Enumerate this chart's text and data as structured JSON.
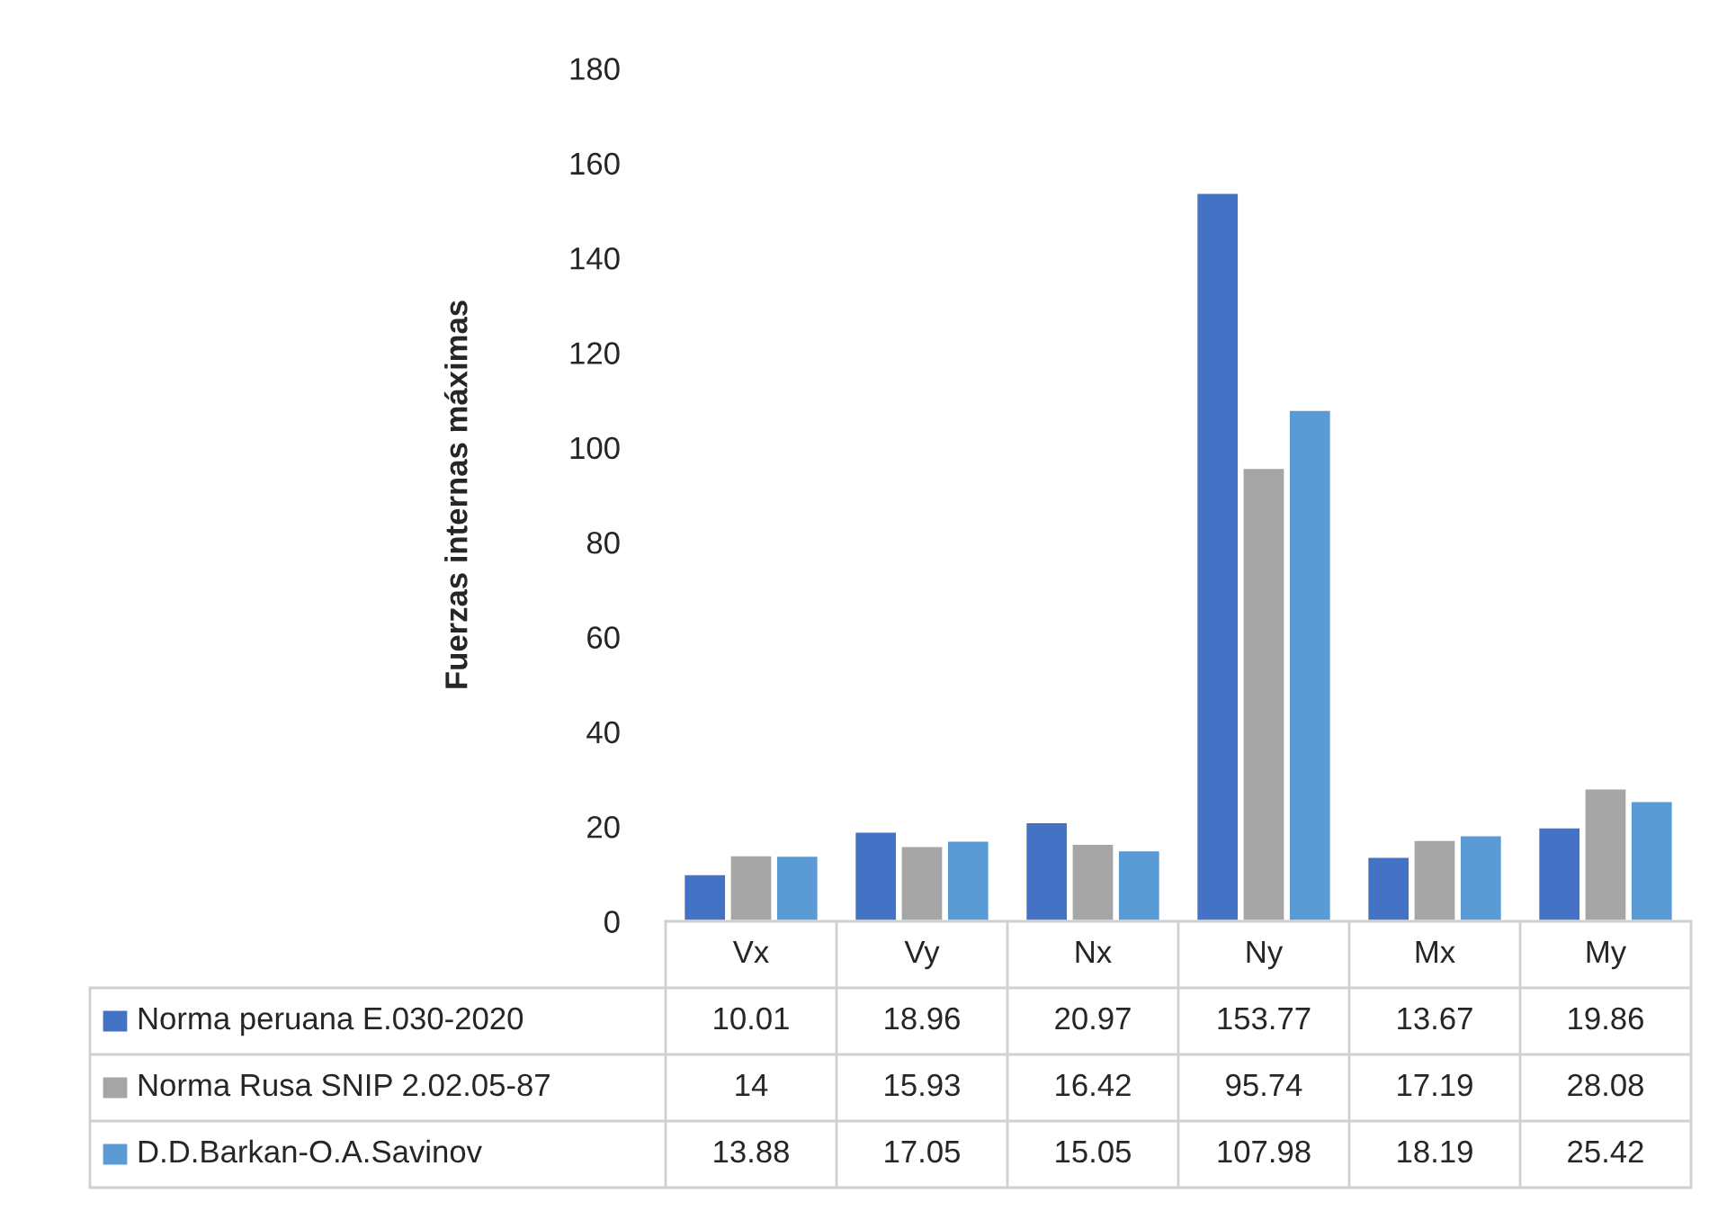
{
  "chart_data": {
    "type": "bar",
    "ylabel": "Fuerzas internas máximas",
    "categories": [
      "Vx",
      "Vy",
      "Nx",
      "Ny",
      "Mx",
      "My"
    ],
    "series": [
      {
        "name": "Norma peruana E.030-2020",
        "color": "#4472c4",
        "values": [
          10.01,
          18.96,
          20.97,
          153.77,
          13.67,
          19.86
        ],
        "value_labels": [
          "10.01",
          "18.96",
          "20.97",
          "153.77",
          "13.67",
          "19.86"
        ]
      },
      {
        "name": "Norma Rusa SNIP 2.02.05-87",
        "color": "#a5a5a5",
        "values": [
          14,
          15.93,
          16.42,
          95.74,
          17.19,
          28.08
        ],
        "value_labels": [
          "14",
          "15.93",
          "16.42",
          "95.74",
          "17.19",
          "28.08"
        ]
      },
      {
        "name": "D.D.Barkan-O.A.Savinov",
        "color": "#5b9bd5",
        "values": [
          13.88,
          17.05,
          15.05,
          107.98,
          18.19,
          25.42
        ],
        "value_labels": [
          "13.88",
          "17.05",
          "15.05",
          "107.98",
          "18.19",
          "25.42"
        ]
      }
    ],
    "ylim": [
      0,
      180
    ],
    "yticks": [
      0,
      20,
      40,
      60,
      80,
      100,
      120,
      140,
      160,
      180
    ],
    "grid": false,
    "legend": "bottom",
    "data_labels": true
  }
}
